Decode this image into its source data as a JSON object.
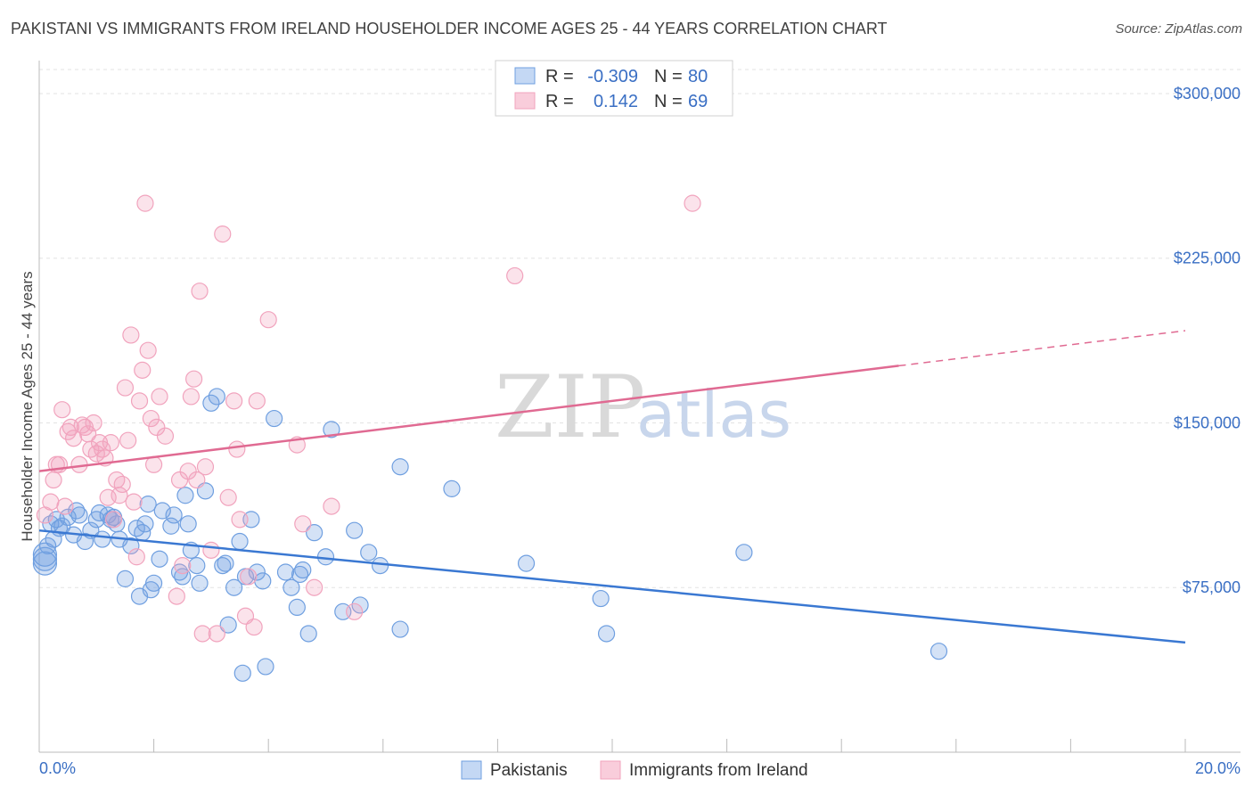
{
  "title": "PAKISTANI VS IMMIGRANTS FROM IRELAND HOUSEHOLDER INCOME AGES 25 - 44 YEARS CORRELATION CHART",
  "source": "Source: ZipAtlas.com",
  "watermark": {
    "zip": "ZIP",
    "atlas": "atlas"
  },
  "legend_box": {
    "row1": {
      "r_label": "R =",
      "r_value": "-0.309",
      "n_label": "N =",
      "n_value": "80"
    },
    "row2": {
      "r_label": "R =",
      "r_value": "0.142",
      "n_label": "N =",
      "n_value": "69"
    }
  },
  "colors": {
    "pakistanis": "#6f9fe0",
    "ireland": "#f1a3bd",
    "blue_line": "#3a78d2",
    "pink_line": "#e06a92"
  },
  "chart_data": {
    "type": "scatter",
    "xlabel": "",
    "ylabel": "Householder Income Ages 25 - 44 years",
    "xlim": [
      0,
      20
    ],
    "ylim": [
      0,
      315000
    ],
    "x_tick_labels": [
      "0.0%",
      "20.0%"
    ],
    "y_ticks": [
      {
        "value": 75000,
        "label": "$75,000"
      },
      {
        "value": 150000,
        "label": "$150,000"
      },
      {
        "value": 225000,
        "label": "$225,000"
      },
      {
        "value": 300000,
        "label": "$300,000"
      }
    ],
    "grid": true,
    "legend_position": "bottom-center",
    "series": [
      {
        "name": "Pakistanis",
        "trend": {
          "x": [
            0,
            20
          ],
          "y": [
            101000,
            50000
          ],
          "dashed_from": null
        },
        "points": [
          [
            0.1,
            90000
          ],
          [
            0.1,
            86000
          ],
          [
            0.1,
            88000
          ],
          [
            0.2,
            104000
          ],
          [
            0.25,
            97000
          ],
          [
            0.3,
            106000
          ],
          [
            0.4,
            103000
          ],
          [
            0.5,
            107000
          ],
          [
            0.6,
            99000
          ],
          [
            0.7,
            108000
          ],
          [
            0.8,
            96000
          ],
          [
            0.9,
            101000
          ],
          [
            1.0,
            106000
          ],
          [
            1.05,
            109000
          ],
          [
            1.1,
            97000
          ],
          [
            1.2,
            108000
          ],
          [
            1.25,
            106000
          ],
          [
            1.3,
            107000
          ],
          [
            1.4,
            97000
          ],
          [
            1.5,
            79000
          ],
          [
            1.6,
            94000
          ],
          [
            1.7,
            102000
          ],
          [
            1.75,
            71000
          ],
          [
            1.8,
            100000
          ],
          [
            1.85,
            104000
          ],
          [
            1.9,
            113000
          ],
          [
            1.95,
            74000
          ],
          [
            2.0,
            77000
          ],
          [
            2.1,
            88000
          ],
          [
            2.15,
            110000
          ],
          [
            2.3,
            103000
          ],
          [
            2.35,
            108000
          ],
          [
            2.5,
            80000
          ],
          [
            2.55,
            117000
          ],
          [
            2.6,
            104000
          ],
          [
            2.65,
            92000
          ],
          [
            2.75,
            85000
          ],
          [
            2.8,
            77000
          ],
          [
            2.9,
            119000
          ],
          [
            3.0,
            159000
          ],
          [
            3.1,
            162000
          ],
          [
            3.2,
            85000
          ],
          [
            3.25,
            86000
          ],
          [
            3.3,
            58000
          ],
          [
            3.4,
            75000
          ],
          [
            3.5,
            96000
          ],
          [
            3.55,
            36000
          ],
          [
            3.6,
            80000
          ],
          [
            3.7,
            106000
          ],
          [
            3.8,
            82000
          ],
          [
            3.9,
            78000
          ],
          [
            3.95,
            39000
          ],
          [
            4.1,
            152000
          ],
          [
            4.3,
            82000
          ],
          [
            4.4,
            75000
          ],
          [
            4.5,
            66000
          ],
          [
            4.55,
            81000
          ],
          [
            4.6,
            83000
          ],
          [
            4.7,
            54000
          ],
          [
            4.8,
            100000
          ],
          [
            5.0,
            89000
          ],
          [
            5.1,
            147000
          ],
          [
            5.3,
            64000
          ],
          [
            5.5,
            101000
          ],
          [
            5.6,
            67000
          ],
          [
            5.75,
            91000
          ],
          [
            5.95,
            85000
          ],
          [
            6.3,
            56000
          ],
          [
            6.3,
            130000
          ],
          [
            7.2,
            120000
          ],
          [
            8.5,
            86000
          ],
          [
            9.8,
            70000
          ],
          [
            9.9,
            54000
          ],
          [
            12.3,
            91000
          ],
          [
            15.7,
            46000
          ],
          [
            0.15,
            94000
          ],
          [
            0.35,
            102000
          ],
          [
            0.65,
            110000
          ],
          [
            1.35,
            104000
          ],
          [
            2.45,
            82000
          ]
        ]
      },
      {
        "name": "Immigrants from Ireland",
        "trend": {
          "x": [
            0,
            20
          ],
          "y": [
            128000,
            192000
          ],
          "dashed_from": 15
        },
        "points": [
          [
            0.1,
            108000
          ],
          [
            0.2,
            114000
          ],
          [
            0.25,
            124000
          ],
          [
            0.3,
            131000
          ],
          [
            0.35,
            131000
          ],
          [
            0.4,
            156000
          ],
          [
            0.5,
            146000
          ],
          [
            0.55,
            148000
          ],
          [
            0.6,
            143000
          ],
          [
            0.7,
            131000
          ],
          [
            0.75,
            149000
          ],
          [
            0.8,
            148000
          ],
          [
            0.85,
            145000
          ],
          [
            0.9,
            138000
          ],
          [
            0.95,
            150000
          ],
          [
            1.0,
            136000
          ],
          [
            1.05,
            141000
          ],
          [
            1.1,
            138000
          ],
          [
            1.15,
            134000
          ],
          [
            1.2,
            116000
          ],
          [
            1.25,
            141000
          ],
          [
            1.3,
            106000
          ],
          [
            1.35,
            124000
          ],
          [
            1.4,
            117000
          ],
          [
            1.45,
            122000
          ],
          [
            1.5,
            166000
          ],
          [
            1.55,
            142000
          ],
          [
            1.6,
            190000
          ],
          [
            1.65,
            114000
          ],
          [
            1.7,
            89000
          ],
          [
            1.75,
            160000
          ],
          [
            1.8,
            174000
          ],
          [
            1.85,
            250000
          ],
          [
            1.9,
            183000
          ],
          [
            1.95,
            152000
          ],
          [
            2.0,
            131000
          ],
          [
            2.05,
            148000
          ],
          [
            2.1,
            162000
          ],
          [
            2.2,
            144000
          ],
          [
            2.4,
            71000
          ],
          [
            2.45,
            124000
          ],
          [
            2.5,
            85000
          ],
          [
            2.6,
            128000
          ],
          [
            2.65,
            162000
          ],
          [
            2.7,
            170000
          ],
          [
            2.75,
            124000
          ],
          [
            2.8,
            210000
          ],
          [
            2.85,
            54000
          ],
          [
            2.9,
            130000
          ],
          [
            3.0,
            92000
          ],
          [
            3.1,
            54000
          ],
          [
            3.2,
            236000
          ],
          [
            3.3,
            116000
          ],
          [
            3.4,
            160000
          ],
          [
            3.5,
            106000
          ],
          [
            3.6,
            62000
          ],
          [
            3.65,
            80000
          ],
          [
            3.75,
            57000
          ],
          [
            3.8,
            160000
          ],
          [
            4.0,
            197000
          ],
          [
            4.5,
            140000
          ],
          [
            4.6,
            104000
          ],
          [
            4.8,
            75000
          ],
          [
            5.1,
            112000
          ],
          [
            5.5,
            64000
          ],
          [
            8.3,
            217000
          ],
          [
            11.4,
            250000
          ],
          [
            0.45,
            112000
          ],
          [
            3.45,
            138000
          ]
        ]
      }
    ]
  },
  "bottom_legend": {
    "pakistanis": "Pakistanis",
    "ireland": "Immigrants from Ireland"
  }
}
